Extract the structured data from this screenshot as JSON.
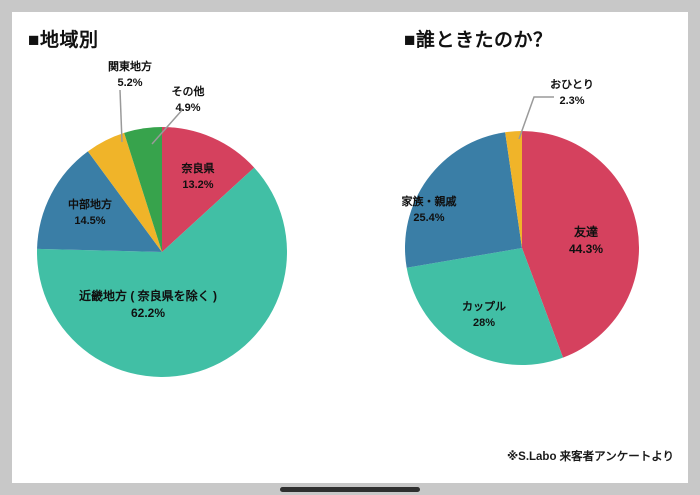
{
  "footer": {
    "note": "※S.Labo 来客者アンケートより"
  },
  "colors": {
    "background": "#c8c8c8",
    "card": "#ffffff",
    "leader_line": "#9a9a9a",
    "red": "#d5415e",
    "teal": "#41bfa5",
    "blue": "#3a7ea6",
    "yellow": "#f0b429",
    "green": "#37a34c"
  },
  "chart_data": [
    {
      "type": "pie",
      "title": "■地域別",
      "start_angle_deg": 0,
      "direction": "clockwise",
      "legend_position": "none",
      "segments": [
        {
          "label": "奈良県",
          "value": 13.2,
          "pct_label": "13.2%",
          "color": "#d5415e"
        },
        {
          "label": "近畿地方 ( 奈良県を除く )",
          "value": 62.2,
          "pct_label": "62.2%",
          "color": "#41bfa5"
        },
        {
          "label": "中部地方",
          "value": 14.5,
          "pct_label": "14.5%",
          "color": "#3a7ea6"
        },
        {
          "label": "関東地方",
          "value": 5.2,
          "pct_label": "5.2%",
          "color": "#f0b429"
        },
        {
          "label": "その他",
          "value": 4.9,
          "pct_label": "4.9%",
          "color": "#37a34c"
        }
      ]
    },
    {
      "type": "pie",
      "title": "■誰ときたのか？",
      "start_angle_deg": 0,
      "direction": "clockwise",
      "legend_position": "none",
      "segments": [
        {
          "label": "友達",
          "value": 44.3,
          "pct_label": "44.3%",
          "color": "#d5415e"
        },
        {
          "label": "カップル",
          "value": 28,
          "pct_label": "28%",
          "color": "#41bfa5"
        },
        {
          "label": "家族・親戚",
          "value": 25.4,
          "pct_label": "25.4%",
          "color": "#3a7ea6"
        },
        {
          "label": "おひとり",
          "value": 2.3,
          "pct_label": "2.3%",
          "color": "#f0b429"
        }
      ]
    }
  ]
}
